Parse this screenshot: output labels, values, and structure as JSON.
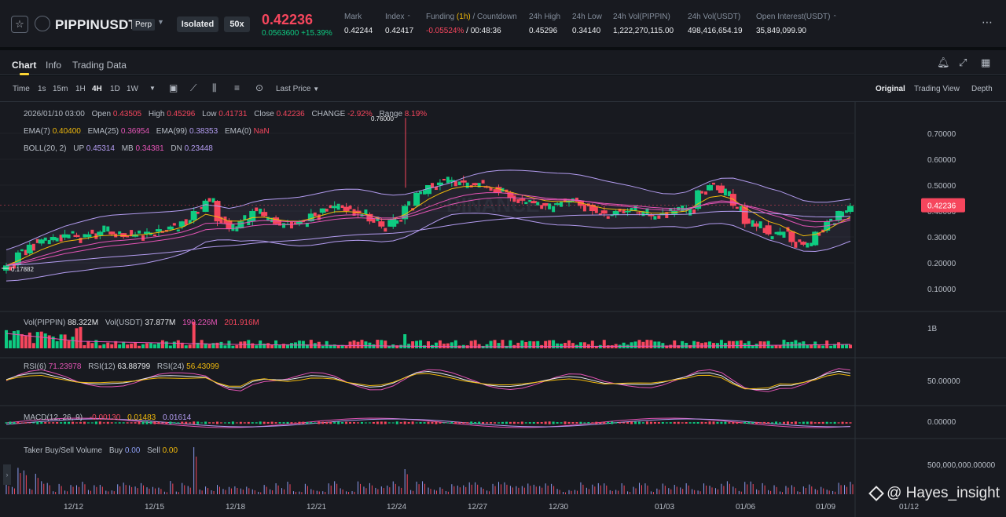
{
  "header": {
    "symbol": "PIPPINUSDT",
    "contract_type": "Perp",
    "margin_mode": "Isolated",
    "leverage": "50x",
    "last_price": "0.42236",
    "change_abs": "0.0563600",
    "change_pct": "+15.39%",
    "stats": [
      {
        "label": "Mark",
        "value": "0.42244"
      },
      {
        "label": "Index",
        "value": "0.42417"
      },
      {
        "label": "Funding (1h) / Countdown",
        "value": "-0.05524%",
        "value2": "/ 00:48:36"
      },
      {
        "label": "24h High",
        "value": "0.45296"
      },
      {
        "label": "24h Low",
        "value": "0.34140"
      },
      {
        "label": "24h Vol(PIPPIN)",
        "value": "1,222,270,115.00"
      },
      {
        "label": "24h Vol(USDT)",
        "value": "498,416,654.19"
      },
      {
        "label": "Open Interest(USDT)",
        "value": "35,849,099.90"
      }
    ]
  },
  "tabs": [
    "Chart",
    "Info",
    "Trading Data"
  ],
  "toolbar": {
    "label_time": "Time",
    "intervals": [
      "1s",
      "15m",
      "1H",
      "4H",
      "1D",
      "1W"
    ],
    "active_interval": "4H",
    "price_source": "Last Price",
    "views": [
      "Original",
      "Trading View",
      "Depth"
    ],
    "active_view": "Original"
  },
  "legend": {
    "ohlc": {
      "date": "2026/01/10 03:00",
      "open_label": "Open",
      "open": "0.43505",
      "high_label": "High",
      "high": "0.45296",
      "low_label": "Low",
      "low": "0.41731",
      "close_label": "Close",
      "close": "0.42236",
      "change_label": "CHANGE",
      "change": "-2.92%",
      "range_label": "Range",
      "range": "8.19%"
    },
    "ema": {
      "ema7_label": "EMA(7)",
      "ema7": "0.40400",
      "ema25_label": "EMA(25)",
      "ema25": "0.36954",
      "ema99_label": "EMA(99)",
      "ema99": "0.38353",
      "ema0_label": "EMA(0)",
      "ema0": "NaN"
    },
    "boll": {
      "label": "BOLL(20, 2)",
      "up_label": "UP",
      "up": "0.45314",
      "mb_label": "MB",
      "mb": "0.34381",
      "dn_label": "DN",
      "dn": "0.23448"
    },
    "vol": {
      "vol_pippin_label": "Vol(PIPPIN)",
      "vol_pippin": "88.322M",
      "vol_usdt_label": "Vol(USDT)",
      "vol_usdt": "37.877M",
      "ma1": "190.226M",
      "ma2": "201.916M"
    },
    "rsi": {
      "rsi6_label": "RSI(6)",
      "rsi6": "71.23978",
      "rsi12_label": "RSI(12)",
      "rsi12": "63.88799",
      "rsi24_label": "RSI(24)",
      "rsi24": "56.43099"
    },
    "macd": {
      "label": "MACD(12, 26, 9)",
      "dif": "-0.00130",
      "dea": "0.01483",
      "hist": "0.01614"
    },
    "taker": {
      "label": "Taker Buy/Sell Volume",
      "buy_label": "Buy",
      "buy": "0.00",
      "sell_label": "Sell",
      "sell": "0.00"
    }
  },
  "price_axis": {
    "ticks": [
      "0.70000",
      "0.60000",
      "0.50000",
      "0.40000",
      "0.30000",
      "0.20000",
      "0.10000"
    ],
    "current_price_tag": "0.42236",
    "high_marker": "0.76000",
    "low_marker": "0.17882"
  },
  "pane_axes": {
    "vol_tick": "1B",
    "rsi_tick": "50.00000",
    "macd_tick": "0.00000",
    "taker_tick": "500,000,000.00000"
  },
  "date_axis": [
    "12/12",
    "12/15",
    "12/18",
    "12/21",
    "12/24",
    "12/27",
    "12/30",
    "01/03",
    "01/06",
    "01/09",
    "01/12"
  ],
  "watermark": {
    "brand": "@ Hayes_insight",
    "chart_watermark": "BINANCE"
  },
  "colors": {
    "up": "#0ecb81",
    "down": "#f6465d",
    "accent": "#fcd535",
    "bg": "#181a20"
  },
  "chart_data": {
    "type": "candlestick",
    "interval": "4H",
    "price_range": [
      0.05,
      0.76
    ],
    "high": 0.76,
    "low": 0.17882,
    "close_path": [
      0.19,
      0.24,
      0.27,
      0.29,
      0.3,
      0.31,
      0.3,
      0.31,
      0.32,
      0.31,
      0.3,
      0.31,
      0.32,
      0.33,
      0.34,
      0.36,
      0.4,
      0.44,
      0.36,
      0.33,
      0.36,
      0.4,
      0.38,
      0.35,
      0.35,
      0.36,
      0.39,
      0.41,
      0.42,
      0.4,
      0.39,
      0.36,
      0.34,
      0.37,
      0.42,
      0.47,
      0.5,
      0.51,
      0.52,
      0.51,
      0.5,
      0.49,
      0.47,
      0.45,
      0.44,
      0.43,
      0.42,
      0.43,
      0.44,
      0.42,
      0.4,
      0.39,
      0.4,
      0.4,
      0.39,
      0.38,
      0.39,
      0.4,
      0.41,
      0.48,
      0.5,
      0.47,
      0.42,
      0.35,
      0.34,
      0.31,
      0.32,
      0.28,
      0.27,
      0.32,
      0.36,
      0.4,
      0.42
    ]
  }
}
